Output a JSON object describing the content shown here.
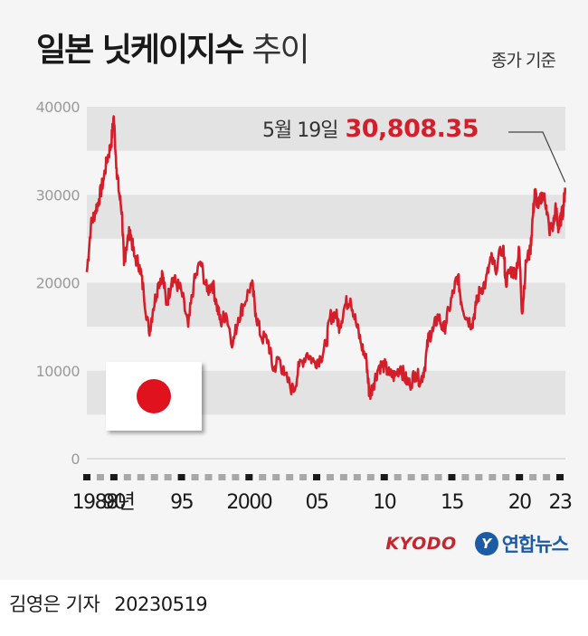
{
  "header": {
    "title": "일본 닛케이지수",
    "subtitle": "추이",
    "basis": "종가 기준"
  },
  "annotation": {
    "date": "5월 19일",
    "value": "30,808.35"
  },
  "icons": {
    "flag": "japan-flag-icon",
    "kyodo_logo": "kyodo-logo",
    "yonhap_logo": "yonhap-logo"
  },
  "logos": {
    "kyodo": "KYODO",
    "yonhap_mark": "Y",
    "yonhap": "연합뉴스"
  },
  "credit": {
    "author": "김영은 기자",
    "date": "20230519"
  },
  "colors": {
    "line": "#d41f2b",
    "band": "#e3e3e3",
    "highlight": "#d41f2b"
  },
  "chart_data": {
    "type": "line",
    "title": "일본 닛케이지수 추이",
    "ylim": [
      0,
      40000
    ],
    "xlim": [
      1988,
      2023.4
    ],
    "yticks": [
      "0",
      "10000",
      "20000",
      "30000",
      "40000"
    ],
    "xticks": [
      {
        "x": 1988,
        "label": "1988년"
      },
      {
        "x": 1990,
        "label": "90"
      },
      {
        "x": 1995,
        "label": "95"
      },
      {
        "x": 2000,
        "label": "2000"
      },
      {
        "x": 2005,
        "label": "05"
      },
      {
        "x": 2010,
        "label": "10"
      },
      {
        "x": 2015,
        "label": "15"
      },
      {
        "x": 2020,
        "label": "20"
      },
      {
        "x": 2023,
        "label": "23"
      }
    ],
    "grid": "horizontal-bands",
    "series": [
      {
        "values": [
          [
            1988.0,
            21200
          ],
          [
            1988.3,
            26500
          ],
          [
            1988.6,
            28000
          ],
          [
            1988.9,
            29500
          ],
          [
            1989.2,
            31500
          ],
          [
            1989.5,
            34000
          ],
          [
            1989.8,
            35800
          ],
          [
            1989.99,
            38915
          ],
          [
            1990.2,
            33000
          ],
          [
            1990.4,
            30000
          ],
          [
            1990.6,
            28000
          ],
          [
            1990.75,
            22000
          ],
          [
            1990.9,
            24000
          ],
          [
            1991.2,
            26000
          ],
          [
            1991.5,
            23000
          ],
          [
            1991.9,
            22000
          ],
          [
            1992.2,
            19000
          ],
          [
            1992.6,
            14300
          ],
          [
            1992.9,
            17000
          ],
          [
            1993.3,
            20000
          ],
          [
            1993.6,
            21000
          ],
          [
            1993.9,
            17500
          ],
          [
            1994.3,
            20500
          ],
          [
            1994.6,
            20000
          ],
          [
            1995.0,
            19000
          ],
          [
            1995.5,
            15000
          ],
          [
            1995.9,
            19800
          ],
          [
            1996.4,
            22400
          ],
          [
            1996.9,
            19000
          ],
          [
            1997.3,
            20000
          ],
          [
            1997.6,
            17500
          ],
          [
            1997.9,
            15500
          ],
          [
            1998.3,
            16500
          ],
          [
            1998.8,
            13000
          ],
          [
            1999.2,
            16000
          ],
          [
            1999.6,
            17500
          ],
          [
            2000.2,
            20000
          ],
          [
            2000.5,
            16500
          ],
          [
            2000.9,
            13800
          ],
          [
            2001.4,
            13500
          ],
          [
            2001.8,
            10000
          ],
          [
            2002.2,
            11500
          ],
          [
            2002.6,
            9500
          ],
          [
            2003.3,
            7600
          ],
          [
            2003.7,
            10500
          ],
          [
            2004.3,
            12000
          ],
          [
            2004.8,
            11000
          ],
          [
            2005.3,
            11500
          ],
          [
            2005.7,
            13000
          ],
          [
            2005.99,
            16100
          ],
          [
            2006.4,
            16500
          ],
          [
            2006.7,
            15000
          ],
          [
            2007.1,
            17500
          ],
          [
            2007.5,
            18200
          ],
          [
            2007.9,
            15500
          ],
          [
            2008.3,
            13000
          ],
          [
            2008.7,
            11000
          ],
          [
            2008.9,
            7200
          ],
          [
            2009.2,
            8500
          ],
          [
            2009.6,
            10500
          ],
          [
            2010.0,
            10600
          ],
          [
            2010.4,
            9500
          ],
          [
            2010.8,
            9400
          ],
          [
            2011.2,
            10500
          ],
          [
            2011.5,
            9200
          ],
          [
            2011.9,
            8400
          ],
          [
            2012.3,
            9800
          ],
          [
            2012.7,
            8800
          ],
          [
            2012.99,
            10400
          ],
          [
            2013.3,
            14000
          ],
          [
            2013.6,
            14500
          ],
          [
            2013.99,
            16300
          ],
          [
            2014.4,
            14500
          ],
          [
            2014.8,
            17000
          ],
          [
            2015.2,
            19500
          ],
          [
            2015.45,
            20800
          ],
          [
            2015.7,
            17800
          ],
          [
            2016.1,
            16000
          ],
          [
            2016.5,
            15300
          ],
          [
            2016.8,
            17500
          ],
          [
            2017.1,
            19200
          ],
          [
            2017.5,
            20000
          ],
          [
            2017.9,
            22800
          ],
          [
            2018.2,
            21500
          ],
          [
            2018.8,
            24200
          ],
          [
            2018.99,
            20000
          ],
          [
            2019.3,
            21500
          ],
          [
            2019.7,
            21000
          ],
          [
            2019.99,
            23700
          ],
          [
            2020.2,
            16500
          ],
          [
            2020.5,
            22500
          ],
          [
            2020.8,
            23500
          ],
          [
            2020.99,
            27500
          ],
          [
            2021.15,
            30400
          ],
          [
            2021.4,
            28500
          ],
          [
            2021.7,
            30200
          ],
          [
            2021.99,
            28800
          ],
          [
            2022.2,
            26000
          ],
          [
            2022.5,
            26500
          ],
          [
            2022.7,
            28500
          ],
          [
            2022.9,
            26000
          ],
          [
            2023.1,
            27500
          ],
          [
            2023.25,
            28500
          ],
          [
            2023.38,
            30808
          ]
        ]
      }
    ]
  }
}
